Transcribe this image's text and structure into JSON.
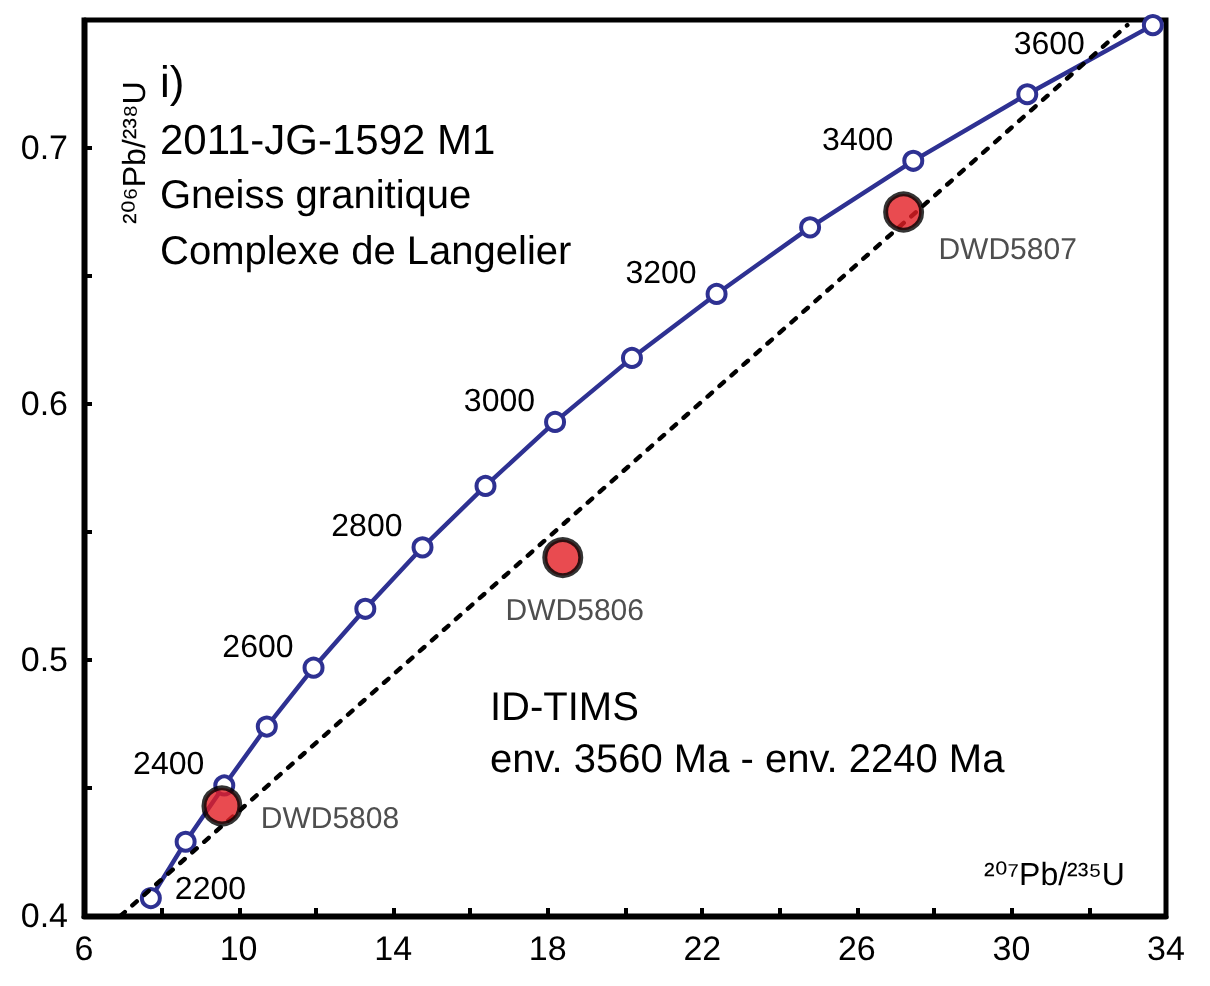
{
  "chart_data": {
    "type": "line",
    "title": "i)",
    "xlabel": "²⁰⁷Pb/²³⁵U",
    "ylabel": "²⁰⁶Pb/²³⁸U",
    "annotations": [
      "2011-JG-1592 M1",
      "Gneiss granitique",
      "Complexe de Langelier",
      "ID-TIMS",
      "env. 3560 Ma - env. 2240 Ma",
      {
        "text": "2200",
        "x": 7.73,
        "y": 0.407
      },
      {
        "text": "2400",
        "x": 9.63,
        "y": 0.451
      },
      {
        "text": "2600",
        "x": 11.94,
        "y": 0.497
      },
      {
        "text": "2800",
        "x": 14.76,
        "y": 0.544
      },
      {
        "text": "3000",
        "x": 18.19,
        "y": 0.593
      },
      {
        "text": "3200",
        "x": 22.37,
        "y": 0.643
      },
      {
        "text": "3400",
        "x": 27.46,
        "y": 0.695
      },
      {
        "text": "3600",
        "x": 33.66,
        "y": 0.748
      }
    ],
    "xlim": [
      6,
      34
    ],
    "ylim": [
      0.4,
      0.75
    ],
    "xticks": [
      6,
      {
        "value": 8,
        "label": null
      },
      10,
      {
        "value": 12,
        "label": null
      },
      14,
      {
        "value": 16,
        "label": null
      },
      18,
      {
        "value": 20,
        "label": null
      },
      22,
      {
        "value": 24,
        "label": null
      },
      26,
      {
        "value": 28,
        "label": null
      },
      30,
      {
        "value": 32,
        "label": null
      },
      34
    ],
    "yticks": [
      0.4,
      {
        "value": 0.45,
        "label": null
      },
      0.5,
      {
        "value": 0.55,
        "label": null
      },
      0.6,
      {
        "value": 0.65,
        "label": null
      },
      0.7
    ],
    "grid": false,
    "series": [
      {
        "type": "line",
        "color": "#2e3192",
        "marker": "circle",
        "line_style": "solid",
        "x": [
          7.73,
          8.63,
          9.63,
          10.73,
          11.94,
          13.28,
          14.76,
          16.39,
          18.19,
          20.18,
          22.37,
          24.79,
          27.46,
          30.41,
          33.66
        ],
        "values": [
          0.407,
          0.429,
          0.451,
          0.474,
          0.497,
          0.52,
          0.544,
          0.568,
          0.593,
          0.618,
          0.643,
          0.669,
          0.695,
          0.721,
          0.748
        ]
      },
      {
        "type": "line",
        "color": "#000000",
        "marker": "none",
        "line_style": "dashed",
        "x": [
          6.94,
          33.0
        ],
        "values": [
          0.4,
          0.748
        ]
      },
      {
        "type": "scatter",
        "color": "#e31e24",
        "marker": "circle",
        "x": [
          9.57,
          18.39,
          27.21
        ],
        "values": [
          0.443,
          0.54,
          0.675
        ],
        "value_labels": [
          "DWD5808",
          "DWD5806",
          "DWD5807"
        ]
      }
    ]
  }
}
